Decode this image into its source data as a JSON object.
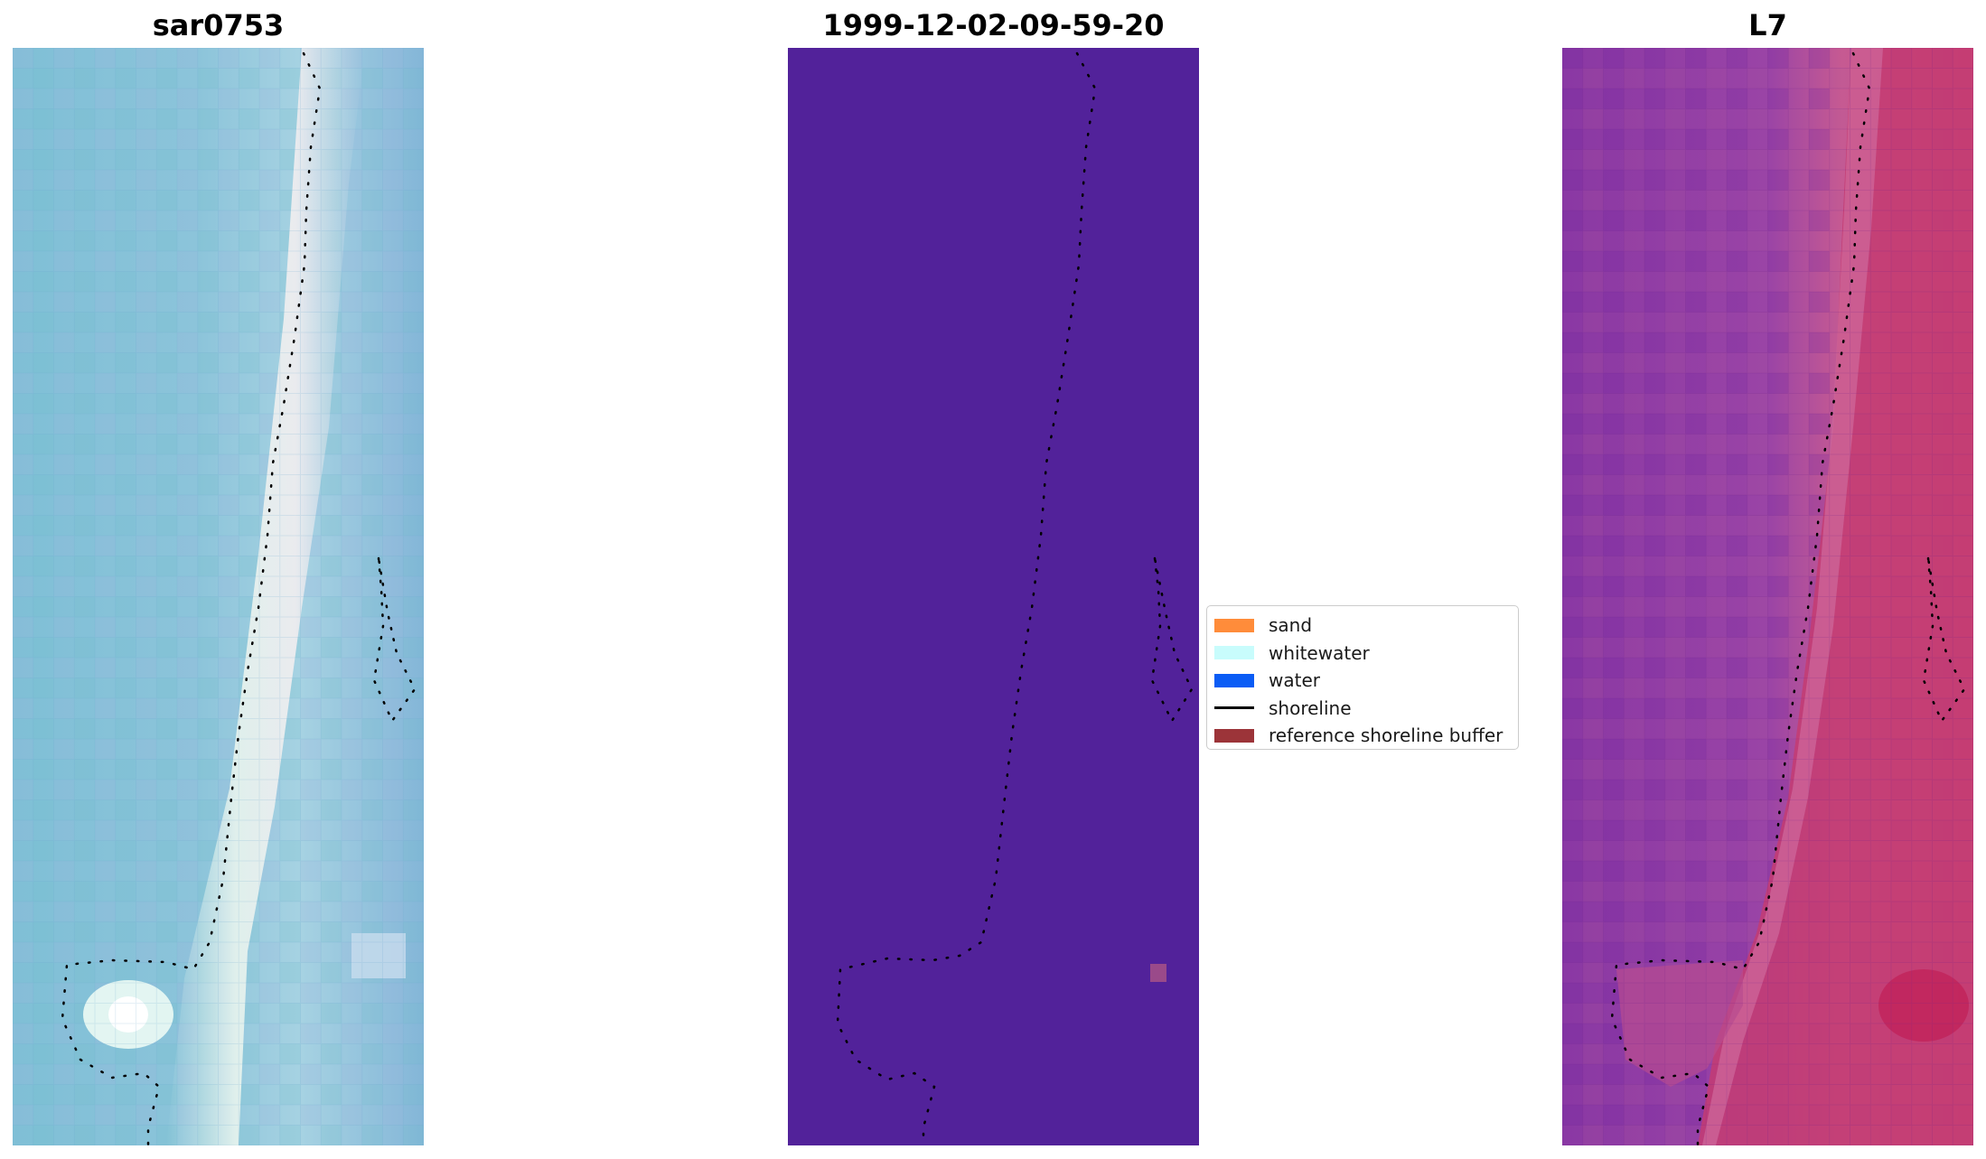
{
  "panels": {
    "left": {
      "title": "sar0753"
    },
    "center": {
      "title": "1999-12-02-09-59-20",
      "background": "#52229a"
    },
    "right": {
      "title": "L7"
    }
  },
  "legend": {
    "items": [
      {
        "label": "sand",
        "color": "#ff8c3a",
        "kind": "patch"
      },
      {
        "label": "whitewater",
        "color": "#c8fcfc",
        "kind": "patch"
      },
      {
        "label": "water",
        "color": "#0a5cf5",
        "kind": "patch"
      },
      {
        "label": "shoreline",
        "color": "#000000",
        "kind": "line"
      },
      {
        "label": "reference shoreline buffer",
        "color": "#9c3439",
        "kind": "patch"
      }
    ]
  }
}
